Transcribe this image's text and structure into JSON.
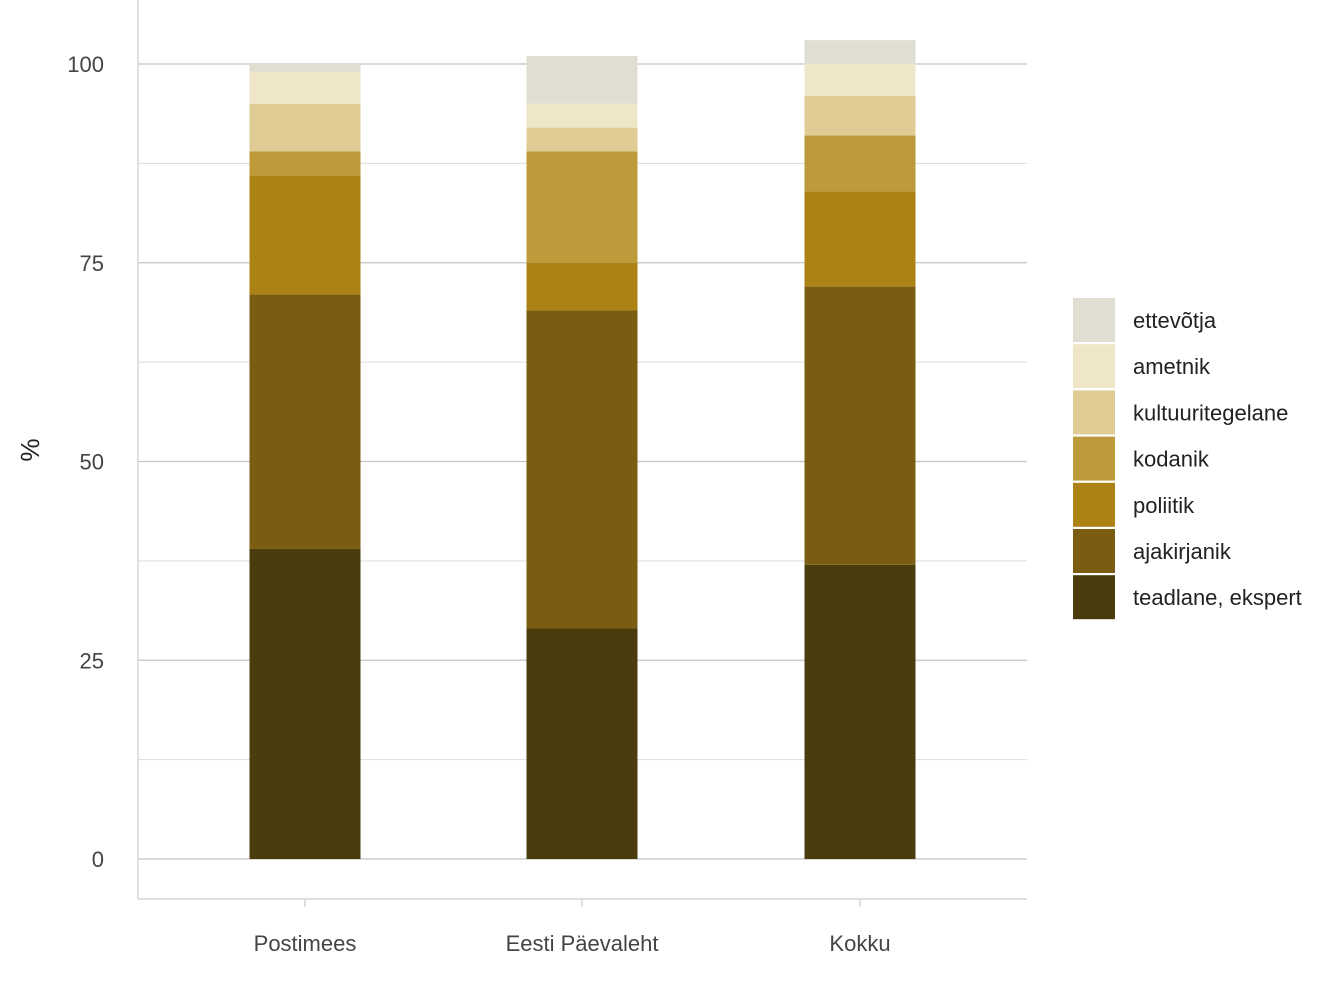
{
  "chart_data": {
    "type": "bar",
    "stacked": true,
    "ylabel": "%",
    "xlabel": "",
    "ylim": [
      -5,
      105
    ],
    "yticks": [
      0,
      25,
      50,
      75,
      100
    ],
    "grid": true,
    "legend_position": "right",
    "categories": [
      "Postimees",
      "Eesti Päevaleht",
      "Kokku"
    ],
    "series": [
      {
        "name": "teadlane, ekspert",
        "color": "#4b3c0e",
        "values": [
          39,
          29,
          37
        ]
      },
      {
        "name": "ajakirjanik",
        "color": "#7b5d12",
        "values": [
          32,
          40,
          35
        ]
      },
      {
        "name": "poliitik",
        "color": "#ad8215",
        "values": [
          15,
          6,
          12
        ]
      },
      {
        "name": "kodanik",
        "color": "#bd9a3a",
        "values": [
          3,
          14,
          7
        ]
      },
      {
        "name": "kultuuritegelane",
        "color": "#dfcc94",
        "values": [
          6,
          3,
          5
        ]
      },
      {
        "name": "ametnik",
        "color": "#efe6c7",
        "values": [
          4,
          3,
          4
        ]
      },
      {
        "name": "ettevõtja",
        "color": "#e0ded1",
        "values": [
          1,
          6,
          3
        ]
      }
    ]
  }
}
